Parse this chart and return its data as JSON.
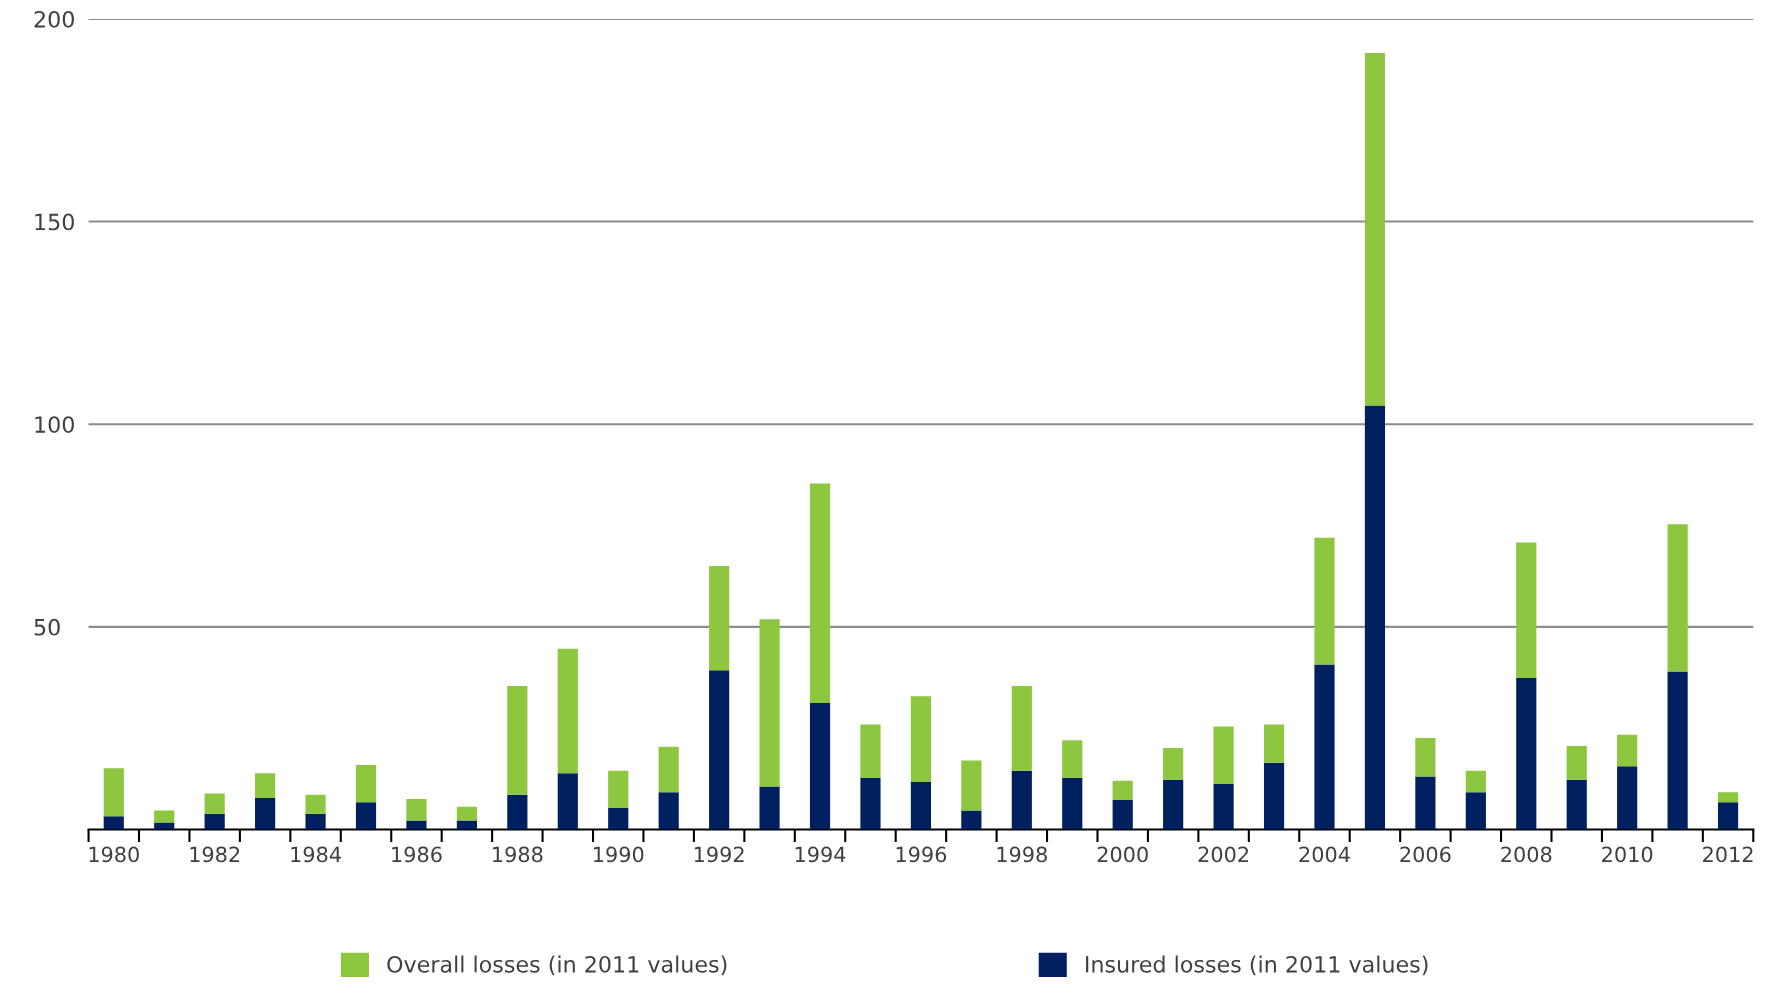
{
  "chart_data": {
    "type": "bar",
    "stacked": true,
    "categories": [
      "1980",
      null,
      "1982",
      null,
      "1984",
      null,
      "1986",
      null,
      "1988",
      null,
      "1990",
      null,
      "1992",
      null,
      "1994",
      null,
      "1996",
      null,
      "1998",
      null,
      "2000",
      null,
      "2002",
      null,
      "2004",
      null,
      "2006",
      null,
      "2008",
      null,
      "2010",
      null,
      "2012"
    ],
    "series": [
      {
        "name": "Insured losses (in 2011 values)",
        "color": "#002060",
        "values": [
          3.3,
          1.7,
          3.9,
          7.8,
          3.9,
          6.7,
          2.2,
          2.2,
          8.6,
          13.9,
          5.3,
          9.2,
          39.3,
          10.6,
          31.2,
          12.8,
          11.7,
          4.7,
          14.5,
          12.8,
          7.3,
          12.3,
          11.2,
          16.5,
          40.7,
          104.6,
          13.1,
          9.2,
          37.4,
          12.3,
          15.6,
          39.0,
          6.7
        ]
      },
      {
        "name": "Overall losses (in 2011 values)",
        "color": "#8dc63f",
        "values": [
          11.8,
          3.0,
          5.0,
          6.1,
          4.7,
          9.2,
          5.3,
          3.4,
          26.8,
          30.7,
          9.2,
          11.2,
          25.7,
          41.3,
          54.2,
          13.1,
          21.2,
          12.3,
          20.9,
          9.2,
          4.7,
          7.8,
          14.2,
          9.4,
          31.3,
          87.0,
          9.5,
          5.3,
          33.4,
          8.3,
          7.8,
          36.3,
          2.5
        ]
      }
    ],
    "ylim": [
      0,
      200
    ],
    "yticks": [
      50,
      100,
      150,
      200
    ],
    "grid": "y",
    "legend": "bottom"
  }
}
